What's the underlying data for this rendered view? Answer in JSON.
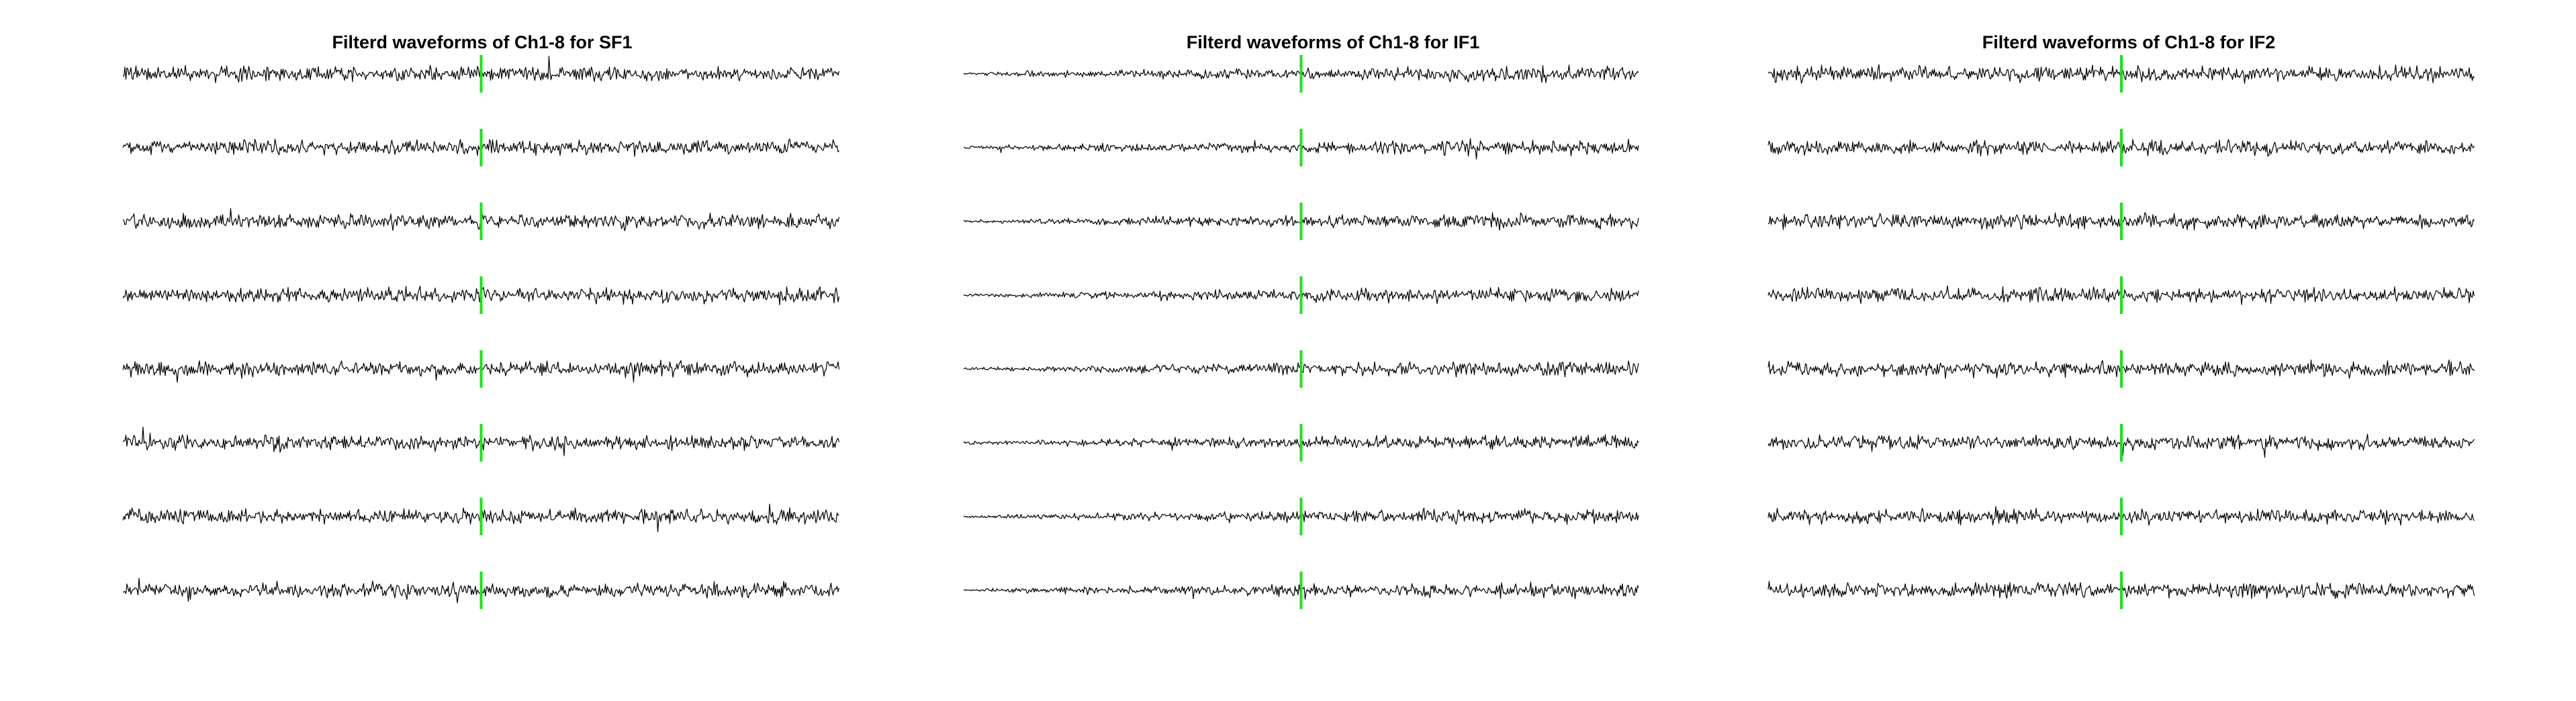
{
  "chart_data": [
    {
      "type": "line",
      "title": "Filterd waveforms of Ch1-8 for SF1",
      "series": [
        {
          "name": "",
          "values": []
        },
        {
          "name": "",
          "values": []
        },
        {
          "name": "",
          "values": []
        },
        {
          "name": "",
          "values": []
        },
        {
          "name": "",
          "values": []
        },
        {
          "name": "",
          "values": []
        },
        {
          "name": "",
          "values": []
        },
        {
          "name": "",
          "values": []
        }
      ],
      "marker": {
        "color": "#22dd22",
        "x_fraction": 0.5
      },
      "trace_color": "#000000",
      "amplitude_profile": "uniform",
      "axes_visible": false,
      "grid": false
    },
    {
      "type": "line",
      "title": "Filterd waveforms of Ch1-8 for IF1",
      "series": [
        {
          "name": "",
          "values": []
        },
        {
          "name": "",
          "values": []
        },
        {
          "name": "",
          "values": []
        },
        {
          "name": "",
          "values": []
        },
        {
          "name": "",
          "values": []
        },
        {
          "name": "",
          "values": []
        },
        {
          "name": "",
          "values": []
        },
        {
          "name": "",
          "values": []
        }
      ],
      "marker": {
        "color": "#22dd22",
        "x_fraction": 0.5
      },
      "trace_color": "#000000",
      "amplitude_profile": "rising",
      "axes_visible": false,
      "grid": false
    },
    {
      "type": "line",
      "title": "Filterd waveforms of Ch1-8 for IF2",
      "series": [
        {
          "name": "",
          "values": []
        },
        {
          "name": "",
          "values": []
        },
        {
          "name": "",
          "values": []
        },
        {
          "name": "",
          "values": []
        },
        {
          "name": "",
          "values": []
        },
        {
          "name": "",
          "values": []
        },
        {
          "name": "",
          "values": []
        },
        {
          "name": "",
          "values": []
        }
      ],
      "marker": {
        "color": "#22dd22",
        "x_fraction": 0.5
      },
      "trace_color": "#000000",
      "amplitude_profile": "uniform",
      "axes_visible": false,
      "grid": false
    }
  ]
}
